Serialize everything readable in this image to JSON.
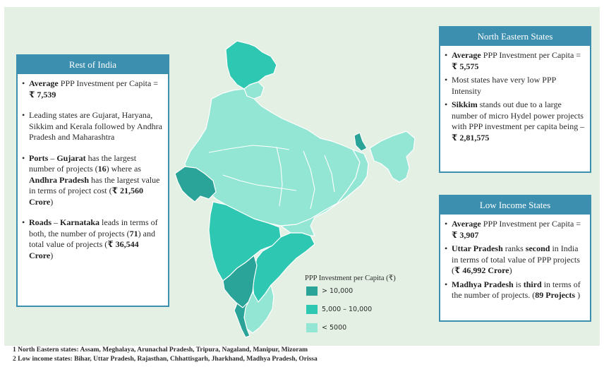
{
  "colors": {
    "background": "#e3f0e3",
    "header": "#3d8fb0",
    "high": "#2aa398",
    "mid": "#2ec7b2",
    "low": "#92e6d3",
    "border": "#ffffff"
  },
  "rest_of_india": {
    "title": "Rest of India",
    "b1_bold": "Average",
    "b1_text": " PPP Investment per Capita = ",
    "b1_value": "₹ 7,539",
    "b2_text": "Leading states are Gujarat, Haryana, Sikkim and Kerala followed by Andhra Pradesh and Maharashtra",
    "b3_bold1": "Ports",
    "b3_dash": " – ",
    "b3_bold2": "Gujarat",
    "b3_text1": " has the largest number of projects (",
    "b3_count": "16",
    "b3_text2": ") where as ",
    "b3_bold3": "Andhra Pradesh",
    "b3_text3": " has the largest value in terms of project cost (",
    "b3_value": "₹ 21,560 Crore",
    "b3_end": ")",
    "b4_bold1": "Roads",
    "b4_dash": " – ",
    "b4_bold2": "Karnataka",
    "b4_text1": " leads in terms of both, the number of projects (",
    "b4_count": "71",
    "b4_text2": ") and total value of projects (",
    "b4_value": "₹ 36,544 Crore",
    "b4_end": ")"
  },
  "north_eastern": {
    "title": "North Eastern States",
    "b1_bold": "Average",
    "b1_text": " PPP Investment per Capita = ",
    "b1_value": "₹ 5,575",
    "b2_text": "Most states have very low PPP Intensity",
    "b3_bold": "Sikkim",
    "b3_text": " stands out due to a large number of micro Hydel power projects with PPP investment per capita being – ",
    "b3_value": "₹ 2,81,575"
  },
  "low_income": {
    "title": "Low Income States",
    "b1_bold": "Average",
    "b1_text": " PPP Investment per Capita = ",
    "b1_value": "₹ 3,907",
    "b2_bold1": "Uttar Pradesh",
    "b2_text1": " ranks ",
    "b2_bold2": "second",
    "b2_text2": " in India in terms of total value of PPP projects (",
    "b2_value": "₹ 46,992 Crore",
    "b2_end": ")",
    "b3_bold1": "Madhya Pradesh",
    "b3_text1": " is ",
    "b3_bold2": "third",
    "b3_text2": " in terms of the number of projects. (",
    "b3_count": "89 Projects",
    "b3_end": " )"
  },
  "legend": {
    "title": "PPP Investment per Capita (₹)",
    "items": [
      {
        "label": "> 10,000",
        "color": "#2aa398"
      },
      {
        "label": "5,000 – 10,000",
        "color": "#2ec7b2"
      },
      {
        "label": "< 5000",
        "color": "#92e6d3"
      }
    ]
  },
  "footnotes": [
    "1 North Eastern states: Assam, Meghalaya, Arunachal Pradesh, Tripura, Nagaland, Manipur, Mizoram",
    "2 Low income states: Bihar, Uttar Pradesh, Rajasthan, Chhattisgarh, Jharkhand, Madhya Pradesh, Orissa"
  ]
}
